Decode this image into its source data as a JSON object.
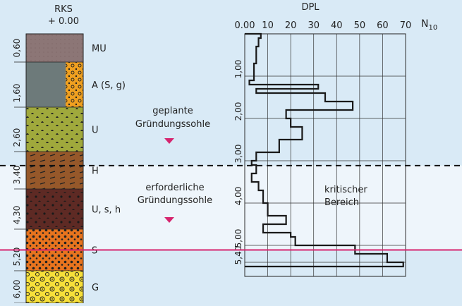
{
  "colors": {
    "background": "#d9eaf6",
    "critical_band": "#eef5fb",
    "critical_line": "#d6246e",
    "marker": "#d6246e",
    "grid": "#222222"
  },
  "rks": {
    "title": "RKS",
    "start": "+ 0.00",
    "depth_labels": [
      "0,60",
      "1,60",
      "2,60",
      "3,40",
      "4,30",
      "5,20",
      "6,00"
    ],
    "layers": [
      {
        "label": "MU",
        "from": 0.0,
        "to": 0.6,
        "pattern": "mu"
      },
      {
        "label": "A (S, g)",
        "from": 0.6,
        "to": 1.6,
        "pattern": "a"
      },
      {
        "label": "U",
        "from": 1.6,
        "to": 2.6,
        "pattern": "u"
      },
      {
        "label": "H",
        "from": 2.6,
        "to": 3.4,
        "pattern": "h"
      },
      {
        "label": "U, s, h",
        "from": 3.4,
        "to": 4.3,
        "pattern": "ush"
      },
      {
        "label": "S",
        "from": 4.3,
        "to": 5.2,
        "pattern": "s"
      },
      {
        "label": "G",
        "from": 5.2,
        "to": 6.0,
        "pattern": "g"
      }
    ]
  },
  "foundation": {
    "planned": {
      "line1": "geplante",
      "line2": "Gründungssohle",
      "depth": 2.9
    },
    "required": {
      "line1": "erforderliche",
      "line2": "Gründungssohle",
      "depth": 4.75
    }
  },
  "critical_zone": {
    "line1": "kritischer",
    "line2": "Bereich",
    "from": 2.9,
    "to": 4.75
  },
  "dpl": {
    "title": "DPL",
    "unit_label": "N",
    "unit_subscript": "10",
    "x_ticks": [
      "0",
      "10",
      "20",
      "30",
      "40",
      "50",
      "60",
      "70"
    ],
    "x_tick_labels": [
      "0.00",
      "10",
      "20",
      "30",
      "40",
      "50",
      "60",
      "70"
    ],
    "y_tick_labels": [
      "1,00",
      "2,00",
      "3,00",
      "4,00",
      "5,00",
      "5,40"
    ]
  },
  "chart_data": {
    "type": "line",
    "title": "DPL",
    "xlabel": "N10",
    "ylabel": "",
    "xlim": [
      0,
      70
    ],
    "ylim": [
      0,
      5.6
    ],
    "series": [
      {
        "name": "N10",
        "depth_intervals": [
          {
            "from": 0.0,
            "to": 0.1,
            "n": 7
          },
          {
            "from": 0.1,
            "to": 0.3,
            "n": 6
          },
          {
            "from": 0.3,
            "to": 0.7,
            "n": 5
          },
          {
            "from": 0.7,
            "to": 1.1,
            "n": 4
          },
          {
            "from": 1.1,
            "to": 1.2,
            "n": 2
          },
          {
            "from": 1.2,
            "to": 1.3,
            "n": 32
          },
          {
            "from": 1.3,
            "to": 1.4,
            "n": 5
          },
          {
            "from": 1.4,
            "to": 1.6,
            "n": 35
          },
          {
            "from": 1.6,
            "to": 1.8,
            "n": 47
          },
          {
            "from": 1.8,
            "to": 2.0,
            "n": 18
          },
          {
            "from": 2.0,
            "to": 2.2,
            "n": 20
          },
          {
            "from": 2.2,
            "to": 2.5,
            "n": 25
          },
          {
            "from": 2.5,
            "to": 2.8,
            "n": 15
          },
          {
            "from": 2.8,
            "to": 3.0,
            "n": 5
          },
          {
            "from": 3.0,
            "to": 3.1,
            "n": 3
          },
          {
            "from": 3.1,
            "to": 3.3,
            "n": 5
          },
          {
            "from": 3.3,
            "to": 3.5,
            "n": 3
          },
          {
            "from": 3.5,
            "to": 3.7,
            "n": 6
          },
          {
            "from": 3.7,
            "to": 4.0,
            "n": 8
          },
          {
            "from": 4.0,
            "to": 4.3,
            "n": 10
          },
          {
            "from": 4.3,
            "to": 4.5,
            "n": 18
          },
          {
            "from": 4.5,
            "to": 4.7,
            "n": 8
          },
          {
            "from": 4.7,
            "to": 4.8,
            "n": 20
          },
          {
            "from": 4.8,
            "to": 5.0,
            "n": 22
          },
          {
            "from": 5.0,
            "to": 5.2,
            "n": 48
          },
          {
            "from": 5.2,
            "to": 5.4,
            "n": 62
          },
          {
            "from": 5.4,
            "to": 5.5,
            "n": 69
          }
        ]
      }
    ]
  }
}
